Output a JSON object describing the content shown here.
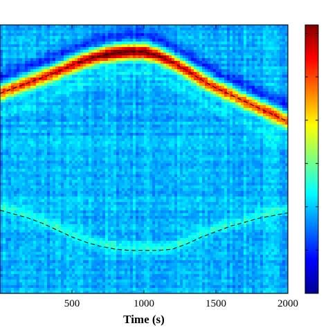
{
  "chart_data": {
    "type": "heatmap",
    "title": "",
    "xlabel": "Time (s)",
    "ylabel": "",
    "xlim": [
      0,
      2000
    ],
    "x_ticks": [
      500,
      1000,
      1500,
      2000
    ],
    "x_tick_labels": [
      "500",
      "1000",
      "1500",
      "2000"
    ],
    "colormap": "jet",
    "colorbar": {
      "position": "right",
      "tick_count": 6
    },
    "ridges": [
      {
        "description_style": "dashed",
        "color": "#000000",
        "x": [
          0,
          100,
          200,
          300,
          400,
          500,
          600,
          700,
          800,
          900,
          1000,
          1100,
          1200,
          1300,
          1400,
          1500,
          1600,
          1700,
          1800,
          1900,
          2000
        ],
        "y": [
          0.745,
          0.765,
          0.785,
          0.805,
          0.825,
          0.85,
          0.87,
          0.885,
          0.895,
          0.9,
          0.9,
          0.885,
          0.86,
          0.83,
          0.795,
          0.765,
          0.74,
          0.715,
          0.69,
          0.665,
          0.64
        ]
      },
      {
        "description_style": "dashed",
        "color": "#000000",
        "x": [
          0,
          100,
          200,
          300,
          400,
          500,
          600,
          700,
          800,
          900,
          1000,
          1100,
          1200,
          1300,
          1400,
          1500,
          1600,
          1700,
          1800,
          1900,
          2000
        ],
        "y": [
          0.31,
          0.295,
          0.28,
          0.26,
          0.235,
          0.21,
          0.19,
          0.175,
          0.165,
          0.16,
          0.16,
          0.16,
          0.165,
          0.185,
          0.21,
          0.23,
          0.25,
          0.265,
          0.28,
          0.29,
          0.3
        ]
      }
    ]
  }
}
